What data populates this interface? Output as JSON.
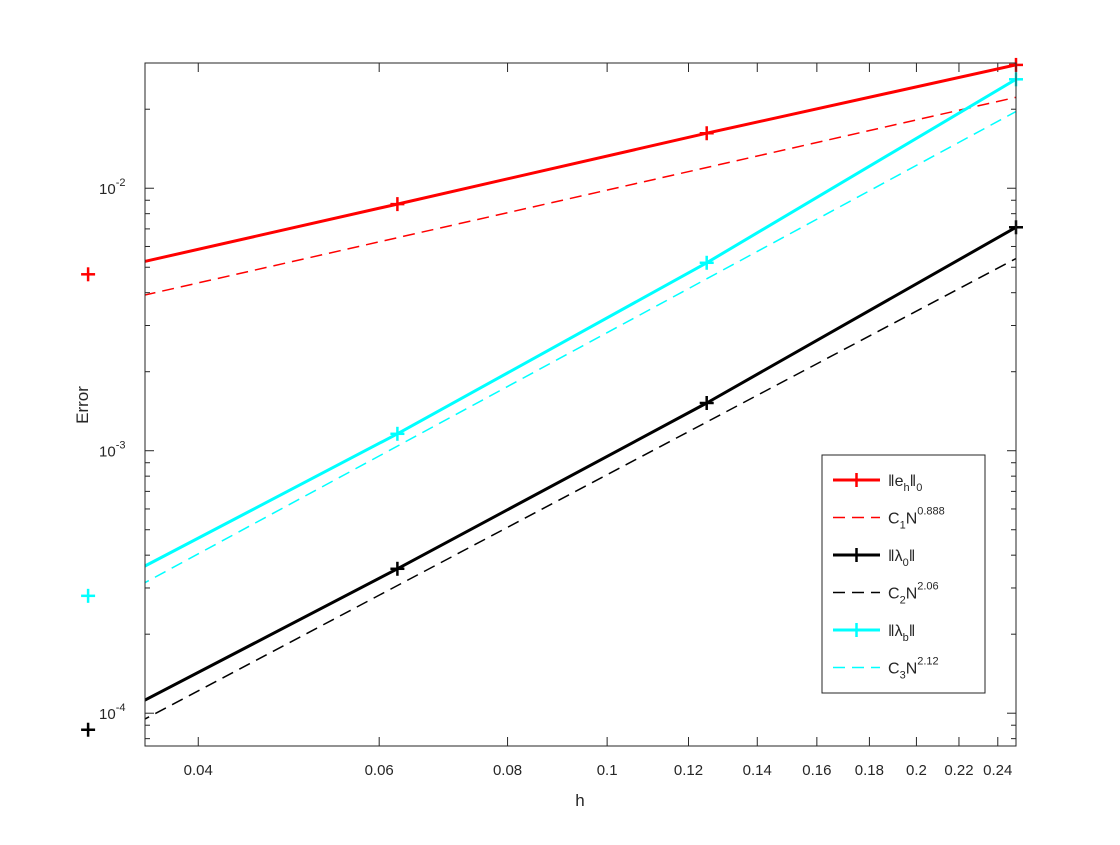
{
  "chart_data": {
    "type": "line",
    "xscale": "log",
    "yscale": "log",
    "xlim": [
      0.0355,
      0.25
    ],
    "ylim": [
      7.5e-05,
      0.03
    ],
    "xlabel": "h",
    "ylabel": "Error",
    "grid": false,
    "legend_location": "bottom-right",
    "x_ticks": [
      0.04,
      0.06,
      0.08,
      0.1,
      0.12,
      0.14,
      0.16,
      0.18,
      0.2,
      0.22,
      0.24
    ],
    "x_tick_labels": [
      "0.04",
      "0.06",
      "0.08",
      "0.1",
      "0.12",
      "0.14",
      "0.16",
      "0.18",
      "0.2",
      "0.22",
      "0.24"
    ],
    "y_ticks": [
      {
        "value": 0.0001,
        "base": "10",
        "exp": "-4"
      },
      {
        "value": 0.001,
        "base": "10",
        "exp": "-3"
      },
      {
        "value": 0.01,
        "base": "10",
        "exp": "-2"
      }
    ],
    "series": [
      {
        "legend_main": "‖e",
        "legend_sub1": "h",
        "legend_mid": "‖",
        "legend_sub2": "0",
        "color": "#ff0000",
        "style": "solid",
        "marker": "+",
        "width": 3,
        "x": [
          0.03125,
          0.0625,
          0.125,
          0.25
        ],
        "y": [
          0.0047,
          0.0087,
          0.0162,
          0.0295
        ]
      },
      {
        "legend_main": "C",
        "legend_sub1": "1",
        "legend_mid": "N",
        "legend_sup": "0.888",
        "color": "#ff0000",
        "style": "dashed",
        "marker": "none",
        "width": 1.5,
        "x": [
          0.03125,
          0.25
        ],
        "y": [
          0.0035,
          0.0222
        ]
      },
      {
        "legend_main": "‖λ",
        "legend_sub1": "0",
        "legend_mid": "‖",
        "color": "#000000",
        "style": "solid",
        "marker": "+",
        "width": 3,
        "x": [
          0.03125,
          0.0625,
          0.125,
          0.25
        ],
        "y": [
          8.65e-05,
          0.000355,
          0.00152,
          0.0071
        ]
      },
      {
        "legend_main": "C",
        "legend_sub1": "2",
        "legend_mid": "N",
        "legend_sup": "2.06",
        "color": "#000000",
        "style": "dashed",
        "marker": "none",
        "width": 1.5,
        "x": [
          0.03125,
          0.25
        ],
        "y": [
          7.3e-05,
          0.0054
        ]
      },
      {
        "legend_main": "‖λ",
        "legend_sub1": "b",
        "legend_mid": "‖",
        "color": "#00ffff",
        "style": "solid",
        "marker": "+",
        "width": 3,
        "x": [
          0.03125,
          0.0625,
          0.125,
          0.25
        ],
        "y": [
          0.00028,
          0.00116,
          0.0052,
          0.026
        ]
      },
      {
        "legend_main": "C",
        "legend_sub1": "3",
        "legend_mid": "N",
        "legend_sup": "2.12",
        "color": "#00ffff",
        "style": "dashed",
        "marker": "none",
        "width": 1.5,
        "x": [
          0.03125,
          0.25
        ],
        "y": [
          0.00024,
          0.0196
        ]
      }
    ]
  }
}
